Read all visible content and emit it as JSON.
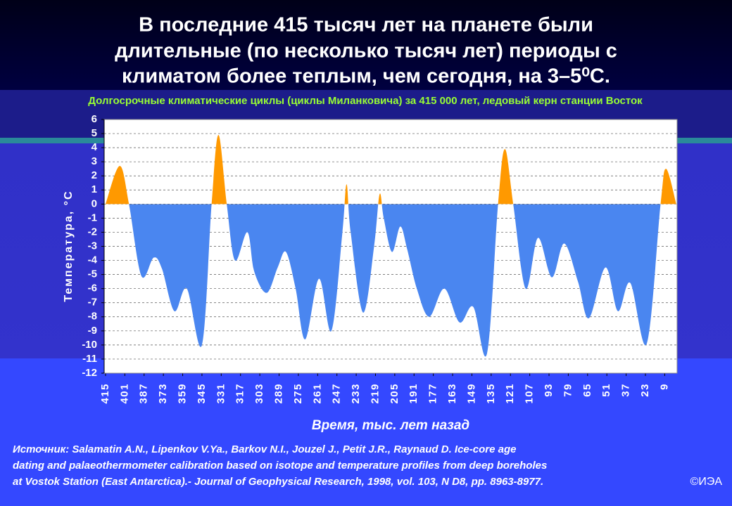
{
  "chart_data": {
    "type": "area",
    "title": [
      "В последние 415 тысяч лет на планете были",
      "длительные (по несколько тысяч лет) периоды с",
      "климатом более теплым, чем сегодня, на 3–5⁰С."
    ],
    "subtitle": "Долгосрочные климатические циклы (циклы Миланковича) за 415 000 лет, ледовый керн станции Восток",
    "y_label": "Температура, °С",
    "x_label": "Время, тыс. лет назад",
    "x": [
      415,
      404.7,
      398,
      389,
      380,
      374,
      365,
      356,
      345,
      338,
      333,
      327,
      321,
      312,
      307,
      298,
      290,
      284,
      277,
      270,
      260,
      251,
      243,
      240,
      237,
      228,
      220,
      216,
      213,
      207,
      201,
      196,
      189,
      180,
      169,
      158,
      148,
      138,
      130,
      125,
      119,
      110,
      101,
      91,
      82,
      72,
      64,
      52,
      43,
      34,
      22,
      12,
      8,
      0.6
    ],
    "values": [
      0,
      2.7,
      0,
      -5.1,
      -3.8,
      -4.6,
      -7.6,
      -6,
      -10,
      0,
      4.9,
      0,
      -4,
      -2,
      -4.8,
      -6.3,
      -4.5,
      -3.4,
      -6,
      -9.6,
      -5.3,
      -9,
      -2,
      1.4,
      -2,
      -7.7,
      -3,
      0.7,
      -1,
      -3.4,
      -1.6,
      -3.2,
      -6,
      -8,
      -6,
      -8.4,
      -7.3,
      -10.6,
      0,
      3.9,
      0,
      -6,
      -2.4,
      -5.2,
      -2.8,
      -5.5,
      -8.1,
      -4.5,
      -7.6,
      -5.6,
      -9.9,
      0,
      2.5,
      0
    ],
    "color_positive": "#ff9900",
    "color_negative": "#4a86f0",
    "xlim": [
      416,
      0
    ],
    "ylim": [
      -12,
      6
    ],
    "xticks": [
      415,
      401,
      387,
      373,
      359,
      345,
      331,
      317,
      303,
      289,
      275,
      261,
      247,
      233,
      219,
      205,
      191,
      177,
      163,
      149,
      135,
      121,
      107,
      93,
      79,
      65,
      51,
      37,
      23,
      9
    ],
    "yticks": [
      -12,
      -11,
      -10,
      -9,
      -8,
      -7,
      -6,
      -5,
      -4,
      -3,
      -2,
      -1,
      0,
      1,
      2,
      3,
      4,
      5,
      6
    ],
    "grid": true
  },
  "source": [
    "Источник: Salamatin A.N., Lipenkov V.Ya., Barkov N.I., Jouzel J., Petit J.R., Raynaud D. Ice-core age",
    "dating and palaeothermometer calibration based on isotope and temperature profiles from deep boreholes",
    "at Vostok  Station (East Antarctica).- Journal of Geophysical Research, 1998, vol. 103, N D8, pp. 8963-8977."
  ],
  "copyright": "©ИЭА"
}
